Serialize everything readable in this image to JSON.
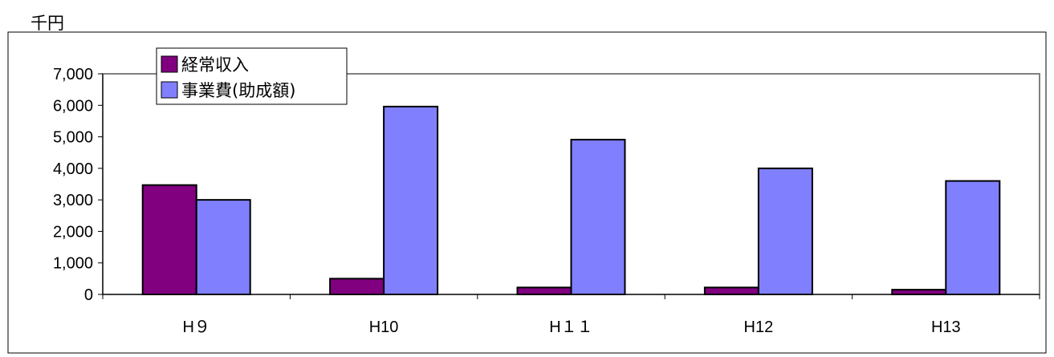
{
  "chart_data": {
    "type": "bar",
    "unit_label": "千円",
    "categories": [
      "H９",
      "H10",
      "H１１",
      "H12",
      "H13"
    ],
    "series": [
      {
        "name": "経常収入",
        "color": "#800080",
        "values": [
          3470,
          500,
          220,
          220,
          150
        ]
      },
      {
        "name": "事業費(助成額)",
        "color": "#8080ff",
        "values": [
          3000,
          5960,
          4910,
          4000,
          3600
        ]
      }
    ],
    "ylim": [
      0,
      7000
    ],
    "yticks": [
      0,
      1000,
      2000,
      3000,
      4000,
      5000,
      6000,
      7000
    ],
    "ytick_labels": [
      "0",
      "1,000",
      "2,000",
      "3,000",
      "4,000",
      "5,000",
      "6,000",
      "7,000"
    ],
    "grid": false,
    "legend_position": "top-left"
  }
}
